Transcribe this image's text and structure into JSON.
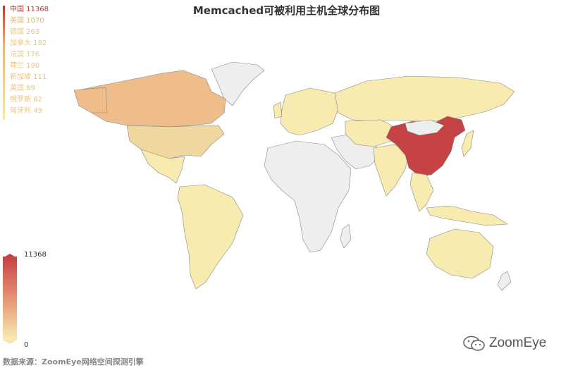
{
  "chart_data": {
    "type": "map",
    "title": "Memcached可被利用主机全球分布图",
    "countries": [
      {
        "name": "中国",
        "value": 11368
      },
      {
        "name": "美国",
        "value": 1070
      },
      {
        "name": "德国",
        "value": 263
      },
      {
        "name": "加拿大",
        "value": 182
      },
      {
        "name": "法国",
        "value": 176
      },
      {
        "name": "荷兰",
        "value": 180
      },
      {
        "name": "新加坡",
        "value": 111
      },
      {
        "name": "英国",
        "value": 89
      },
      {
        "name": "俄罗斯",
        "value": 82
      },
      {
        "name": "匈牙利",
        "value": 49
      }
    ],
    "visual_map": {
      "min": 0,
      "max": 11368,
      "min_label": "0",
      "max_label": "11368"
    },
    "colors": {
      "high": "#c54245",
      "mid": "#eebd8a",
      "low": "#f8ebb0",
      "no_data": "#eeeeee",
      "border": "#888888"
    }
  },
  "legend": [
    {
      "label": "中国 11368",
      "color": "#c23531"
    },
    {
      "label": "美国 1070",
      "color": "#e3b57c"
    },
    {
      "label": "德国 263",
      "color": "#e9c686"
    },
    {
      "label": "加拿大 182",
      "color": "#e9c686"
    },
    {
      "label": "法国 176",
      "color": "#e9c686"
    },
    {
      "label": "荷兰 180",
      "color": "#e9c686"
    },
    {
      "label": "新加坡 111",
      "color": "#e9c686"
    },
    {
      "label": "英国 89",
      "color": "#e9c686"
    },
    {
      "label": "俄罗斯 82",
      "color": "#e9c686"
    },
    {
      "label": "匈牙利 49",
      "color": "#e9c686"
    }
  ],
  "source_text": "数据来源：ZoomEye网络空间探测引擎",
  "watermark_text": "ZoomEye"
}
